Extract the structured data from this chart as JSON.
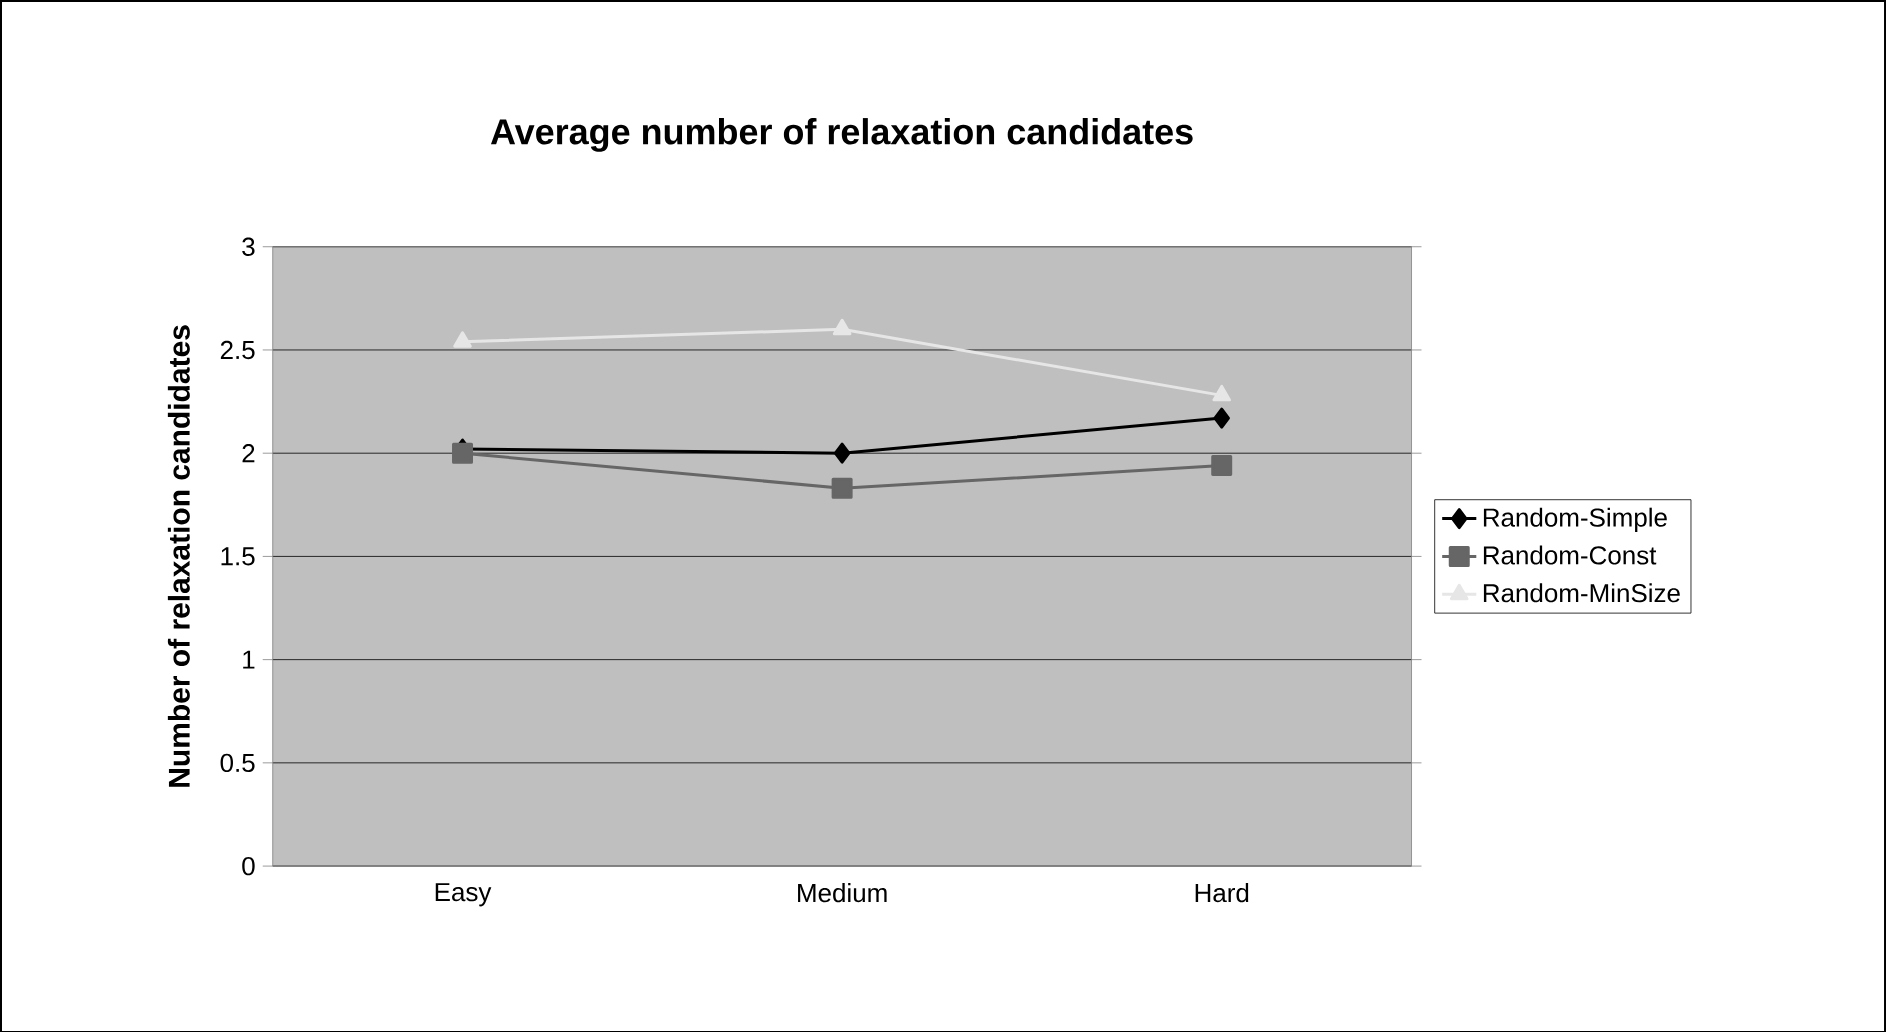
{
  "chart_data": {
    "type": "line",
    "title": "Average number of relaxation candidates",
    "ylabel": "Number of relaxation candidates",
    "categories": [
      "Easy",
      "Medium",
      "Hard"
    ],
    "series": [
      {
        "name": "Random-Simple",
        "color": "#000000",
        "marker": "diamond",
        "values": [
          2.02,
          2.0,
          2.17
        ]
      },
      {
        "name": "Random-Const",
        "color": "#666666",
        "marker": "square",
        "values": [
          2.0,
          1.83,
          1.94
        ]
      },
      {
        "name": "Random-MinSize",
        "color": "#e6e6e6",
        "marker": "triangle",
        "values": [
          2.54,
          2.6,
          2.28
        ]
      }
    ],
    "ylim": [
      0,
      3
    ],
    "yticks": [
      0,
      0.5,
      1,
      1.5,
      2,
      2.5,
      3
    ],
    "grid": "y",
    "legend": "right"
  }
}
